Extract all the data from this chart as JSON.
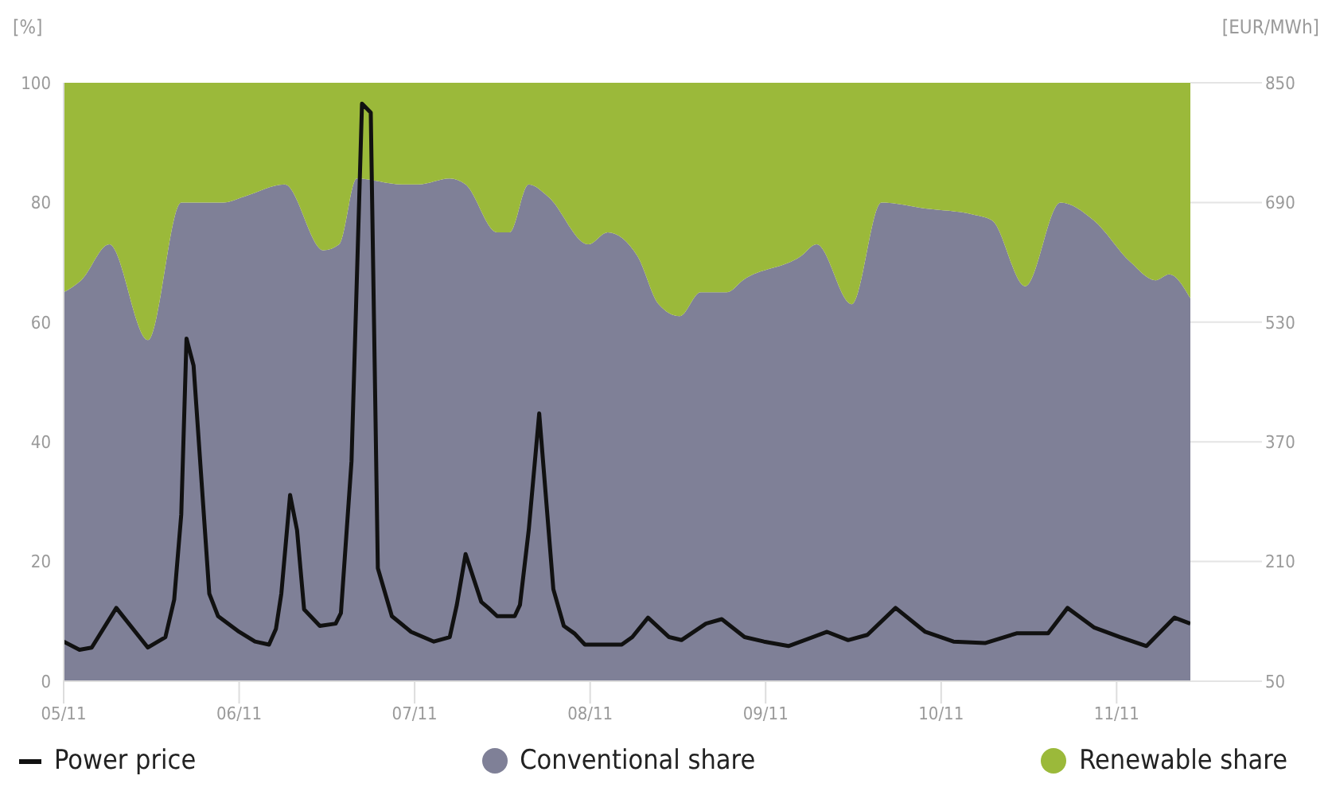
{
  "chart_data": {
    "type": "area",
    "stacked": true,
    "ylabel": "[%]",
    "y2label": "[EUR/MWh]",
    "legend": "bottom",
    "x": [
      "--11-05T00:00",
      "--11-05T02:24",
      "--11-05T06:14",
      "--11-05T11:31",
      "--11-05T16:05",
      "--11-05T21:50",
      "--11-06T00:43",
      "--11-06T06:14",
      "--11-06T11:31",
      "--11-06T13:41",
      "--11-06T16:05",
      "--11-06T22:19",
      "--11-07T00:29",
      "--11-07T04:48",
      "--11-07T06:58",
      "--11-07T11:17",
      "--11-07T12:58",
      "--11-07T15:36",
      "--11-07T18:14",
      "--11-07T23:46",
      "--11-08T02:24",
      "--11-08T06:29",
      "--11-08T09:22",
      "--11-08T12:14",
      "--11-08T15:07",
      "--11-08T18:43",
      "--11-08T20:53",
      "--11-09T04:48",
      "--11-09T06:58",
      "--11-09T11:46",
      "--11-09T15:50",
      "--11-09T21:50",
      "--11-10T04:19",
      "--11-10T06:58",
      "--11-10T11:31",
      "--11-10T16:19",
      "--11-10T20:53",
      "--11-11T01:55",
      "--11-11T05:17",
      "--11-11T07:12",
      "--11-11T10:05"
    ],
    "xlim": [
      "--11-05T00:00",
      "--11-11T10:05"
    ],
    "xticks": [
      {
        "value": "--11-05",
        "label": "05/11"
      },
      {
        "value": "--11-06",
        "label": "06/11"
      },
      {
        "value": "--11-07",
        "label": "07/11"
      },
      {
        "value": "--11-08",
        "label": "08/11"
      },
      {
        "value": "--11-09",
        "label": "09/11"
      },
      {
        "value": "--11-10",
        "label": "10/11"
      },
      {
        "value": "--11-11",
        "label": "11/11"
      }
    ],
    "ylim": [
      0,
      100
    ],
    "yticks": [
      0,
      20,
      40,
      60,
      80,
      100
    ],
    "y2lim": [
      50,
      850
    ],
    "y2ticks": [
      50,
      210,
      370,
      530,
      690,
      850
    ],
    "series": [
      {
        "name": "Power price",
        "type": "line",
        "axis": "y2",
        "color": "#111111",
        "x": [
          "--11-05T00:00",
          "--11-05T02:10",
          "--11-05T03:50",
          "--11-05T07:12",
          "--11-05T11:31",
          "--11-05T13:55",
          "--11-05T15:07",
          "--11-05T16:05",
          "--11-05T16:48",
          "--11-05T17:46",
          "--11-05T19:55",
          "--11-05T21:07",
          "--11-06T00:00",
          "--11-06T02:10",
          "--11-06T04:05",
          "--11-06T05:02",
          "--11-06T05:46",
          "--11-06T06:58",
          "--11-06T07:55",
          "--11-06T08:53",
          "--11-06T11:02",
          "--11-06T13:12",
          "--11-06T13:55",
          "--11-06T15:22",
          "--11-06T16:48",
          "--11-06T18:00",
          "--11-06T18:58",
          "--11-06T20:53",
          "--11-06T23:31",
          "--11-07T02:38",
          "--11-07T04:48",
          "--11-07T05:46",
          "--11-07T06:58",
          "--11-07T09:07",
          "--11-07T10:05",
          "--11-07T11:17",
          "--11-07T13:41",
          "--11-07T14:24",
          "--11-07T15:36",
          "--11-07T17:02",
          "--11-07T18:58",
          "--11-07T20:24",
          "--11-07T21:50",
          "--11-07T23:17",
          "--11-08T04:19",
          "--11-08T05:46",
          "--11-08T07:55",
          "--11-08T10:48",
          "--11-08T12:29",
          "--11-08T15:50",
          "--11-08T18:00",
          "--11-08T21:07",
          "--11-08T23:46",
          "--11-09T03:07",
          "--11-09T08:24",
          "--11-09T11:17",
          "--11-09T13:55",
          "--11-09T17:46",
          "--11-09T21:50",
          "--11-10T01:41",
          "--11-10T06:00",
          "--11-10T10:19",
          "--11-10T14:38",
          "--11-10T17:17",
          "--11-10T20:53",
          "--11-11T00:29",
          "--11-11T04:05",
          "--11-11T07:55",
          "--11-11T10:05"
        ],
        "values": [
          103,
          92,
          95,
          148,
          95,
          109,
          159,
          273,
          508,
          472,
          167,
          137,
          116,
          103,
          99,
          120,
          167,
          299,
          252,
          146,
          124,
          127,
          141,
          344,
          822,
          810,
          201,
          137,
          116,
          103,
          109,
          152,
          220,
          156,
          148,
          137,
          137,
          152,
          252,
          408,
          173,
          124,
          114,
          99,
          99,
          109,
          135,
          109,
          105,
          127,
          133,
          109,
          103,
          97,
          116,
          105,
          112,
          148,
          116,
          103,
          101,
          114,
          114,
          148,
          122,
          109,
          97,
          135,
          127
        ]
      },
      {
        "name": "Conventional share",
        "color": "#7f8097",
        "values": [
          65,
          67,
          73,
          57,
          80,
          80,
          81,
          83,
          72,
          73,
          84,
          83,
          83,
          84,
          83,
          75,
          75,
          83,
          81,
          73,
          75,
          71,
          63,
          61,
          65,
          65,
          67,
          71,
          73,
          63,
          80,
          79,
          78,
          77,
          66,
          80,
          77,
          70,
          67,
          68,
          64
        ]
      },
      {
        "name": "Renewable share",
        "color": "#9bb93a",
        "values": [
          35,
          33,
          27,
          43,
          20,
          20,
          19,
          17,
          28,
          27,
          16,
          17,
          17,
          16,
          17,
          25,
          25,
          17,
          19,
          27,
          25,
          29,
          37,
          39,
          35,
          35,
          33,
          29,
          27,
          37,
          20,
          21,
          22,
          23,
          34,
          20,
          23,
          30,
          33,
          32,
          36
        ]
      }
    ]
  }
}
